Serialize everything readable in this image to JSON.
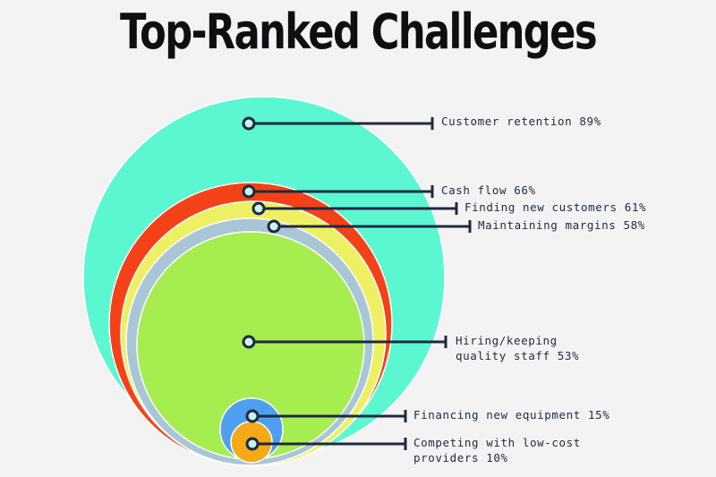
{
  "chart_data": {
    "type": "bubble",
    "title": "Top-Ranked Challenges",
    "unit": "%",
    "series": [
      {
        "category": "Customer retention",
        "value": 89,
        "color": "#5bf7d0",
        "label_lines": [
          "Customer retention 89%"
        ]
      },
      {
        "category": "Cash flow",
        "value": 66,
        "color": "#f44218",
        "label_lines": [
          "Cash flow 66%"
        ]
      },
      {
        "category": "Finding new customers",
        "value": 61,
        "color": "#eef064",
        "label_lines": [
          "Finding new customers 61%"
        ]
      },
      {
        "category": "Maintaining margins",
        "value": 58,
        "color": "#a9c6d6",
        "label_lines": [
          "Maintaining margins 58%"
        ]
      },
      {
        "category": "Hiring/keeping quality staff",
        "value": 53,
        "color": "#a6ed50",
        "label_lines": [
          "Hiring/keeping",
          "quality staff 53%"
        ]
      },
      {
        "category": "Financing new equipment",
        "value": 15,
        "color": "#4f9ff0",
        "label_lines": [
          "Financing new equipment 15%"
        ]
      },
      {
        "category": "Competing with low-cost providers",
        "value": 10,
        "color": "#f5a818",
        "label_lines": [
          "Competing with low-cost",
          "providers 10%"
        ]
      }
    ]
  },
  "style": {
    "leader_color": "#1e2940",
    "marker_fill": "#c8f5e8",
    "background": "#f3f3f3"
  }
}
